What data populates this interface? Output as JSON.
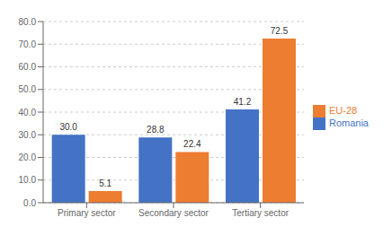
{
  "chart_data": {
    "type": "bar",
    "categories": [
      "Primary sector",
      "Secondary sector",
      "Tertiary sector"
    ],
    "series": [
      {
        "name": "Romania",
        "color": "#4472C4",
        "values": [
          30.0,
          28.8,
          41.2
        ],
        "value_labels": [
          "30.0",
          "28.8",
          "41.2"
        ]
      },
      {
        "name": "EU-28",
        "color": "#ED7D31",
        "values": [
          5.1,
          22.4,
          72.5
        ],
        "value_labels": [
          "5.1",
          "22.4",
          "72.5"
        ]
      }
    ],
    "ylim": [
      0,
      80.0
    ],
    "yticks": [
      {
        "value": 0.0,
        "label": "0.0"
      },
      {
        "value": 10.0,
        "label": "10.0"
      },
      {
        "value": 20.0,
        "label": "20.0"
      },
      {
        "value": 30.0,
        "label": "30.0"
      },
      {
        "value": 40.0,
        "label": "40.0"
      },
      {
        "value": 50.0,
        "label": "50.0"
      },
      {
        "value": 60.0,
        "label": "60.0"
      },
      {
        "value": 70.0,
        "label": "70.0"
      },
      {
        "value": 80.0,
        "label": "80.0"
      }
    ],
    "grid": true,
    "legend": "right",
    "data_labels": true
  }
}
